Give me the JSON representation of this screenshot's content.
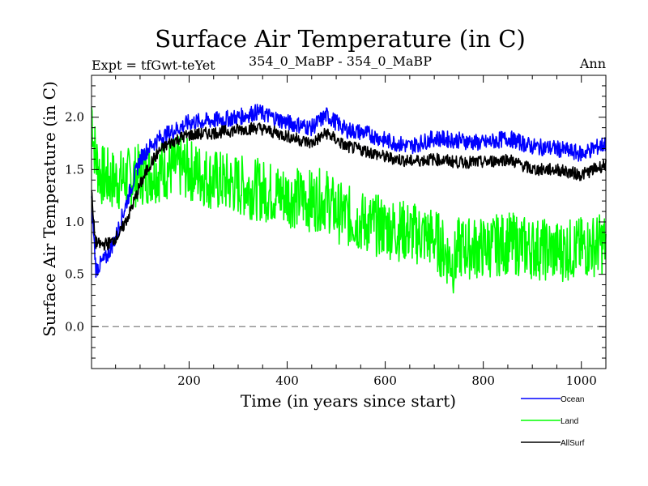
{
  "chart_data": {
    "type": "line",
    "title": "Surface Air Temperature (in C)",
    "header_left": "Expt = tfGwt-teYet",
    "header_center": "354_0_MaBP - 354_0_MaBP",
    "header_right": "Ann",
    "xlabel": "Time (in years since start)",
    "ylabel": "Surface Air Temperature (in C)",
    "xlim": [
      1,
      1050
    ],
    "ylim": [
      -0.4,
      2.4
    ],
    "xticks": [
      200,
      400,
      600,
      800,
      1000
    ],
    "xtick_labels": [
      "200",
      "400",
      "600",
      "800",
      "1000"
    ],
    "yticks": [
      0.0,
      0.5,
      1.0,
      1.5,
      2.0
    ],
    "ytick_labels": [
      "0.0",
      "0.5",
      "1.0",
      "1.5",
      "2.0"
    ],
    "reference_line": {
      "y": 0.0,
      "style": "dashed"
    },
    "legend_position": "below-right",
    "series": [
      {
        "name": "Ocean",
        "color": "#0000ff",
        "x": [
          1,
          10,
          20,
          30,
          40,
          50,
          60,
          70,
          80,
          90,
          100,
          120,
          140,
          160,
          180,
          200,
          250,
          300,
          340,
          400,
          450,
          480,
          520,
          560,
          600,
          650,
          700,
          750,
          800,
          850,
          900,
          950,
          1000,
          1050
        ],
        "values": [
          1.2,
          0.55,
          0.6,
          0.65,
          0.75,
          0.85,
          1.0,
          1.15,
          1.3,
          1.45,
          1.6,
          1.72,
          1.8,
          1.85,
          1.9,
          1.95,
          1.97,
          2.0,
          2.05,
          1.95,
          1.9,
          2.02,
          1.88,
          1.85,
          1.78,
          1.72,
          1.8,
          1.78,
          1.75,
          1.8,
          1.72,
          1.7,
          1.65,
          1.75
        ],
        "noise": 0.08
      },
      {
        "name": "Land",
        "color": "#00ff00",
        "x": [
          1,
          5,
          10,
          20,
          40,
          60,
          100,
          150,
          180,
          200,
          250,
          300,
          350,
          400,
          450,
          480,
          500,
          550,
          600,
          650,
          700,
          740,
          750,
          800,
          850,
          900,
          950,
          1000,
          1050
        ],
        "values": [
          2.1,
          1.8,
          1.6,
          1.45,
          1.4,
          1.4,
          1.45,
          1.5,
          1.52,
          1.5,
          1.4,
          1.35,
          1.3,
          1.25,
          1.2,
          1.22,
          1.1,
          1.0,
          0.95,
          0.9,
          0.85,
          0.6,
          0.75,
          0.75,
          0.8,
          0.75,
          0.72,
          0.75,
          0.8
        ],
        "noise": 0.3
      },
      {
        "name": "AllSurf",
        "color": "#000000",
        "x": [
          1,
          5,
          10,
          20,
          40,
          60,
          80,
          100,
          120,
          140,
          160,
          180,
          200,
          250,
          300,
          340,
          400,
          450,
          480,
          520,
          560,
          600,
          650,
          700,
          750,
          800,
          850,
          900,
          950,
          1000,
          1050
        ],
        "values": [
          1.3,
          1.0,
          0.8,
          0.78,
          0.8,
          0.9,
          1.1,
          1.35,
          1.55,
          1.68,
          1.75,
          1.8,
          1.83,
          1.85,
          1.88,
          1.9,
          1.82,
          1.75,
          1.85,
          1.72,
          1.68,
          1.62,
          1.58,
          1.6,
          1.57,
          1.57,
          1.6,
          1.5,
          1.5,
          1.45,
          1.55
        ],
        "noise": 0.06
      }
    ]
  }
}
